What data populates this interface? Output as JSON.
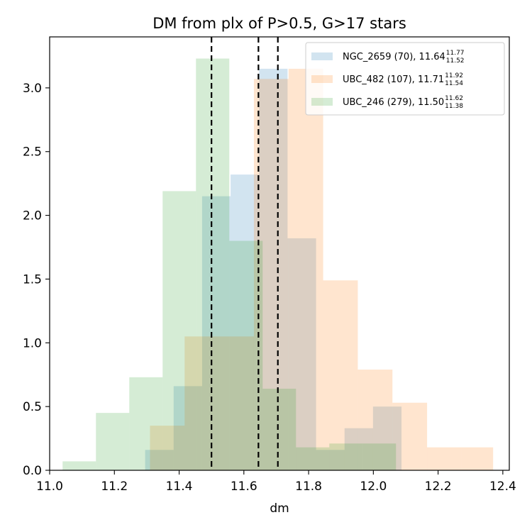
{
  "chart_data": {
    "type": "histogram",
    "title": "DM from plx of P>0.5, G>17 stars",
    "xlabel": "dm",
    "ylabel": "",
    "xlim": [
      11.0,
      12.42
    ],
    "ylim": [
      0,
      3.4
    ],
    "xticks": [
      "11.0",
      "11.2",
      "11.4",
      "11.6",
      "11.8",
      "12.0",
      "12.2",
      "12.4"
    ],
    "yticks": [
      "0.0",
      "0.5",
      "1.0",
      "1.5",
      "2.0",
      "2.5",
      "3.0"
    ],
    "legend_position": "upper-right",
    "series": [
      {
        "name": "NGC_2659 (70), 11.64",
        "sup": "11.77",
        "sub": "11.52",
        "color": "#1f77b4",
        "bin_edges": [
          11.295,
          11.383,
          11.471,
          11.559,
          11.647,
          11.735,
          11.823,
          11.911,
          11.999,
          12.087
        ],
        "values": [
          0.16,
          0.66,
          2.15,
          2.32,
          3.15,
          1.82,
          0.16,
          0.33,
          0.5
        ]
      },
      {
        "name": "UBC_482 (107), 11.71",
        "sup": "11.92",
        "sub": "11.54",
        "color": "#ff7f0e",
        "bin_edges": [
          11.31,
          11.417,
          11.524,
          11.631,
          11.738,
          11.845,
          11.952,
          12.059,
          12.166,
          12.273,
          12.37
        ],
        "values": [
          0.35,
          1.05,
          1.05,
          3.07,
          3.15,
          1.49,
          0.79,
          0.53,
          0.18,
          0.18
        ]
      },
      {
        "name": "UBC_246 (279), 11.50",
        "sup": "11.62",
        "sub": "11.38",
        "color": "#2ca02c",
        "bin_edges": [
          11.04,
          11.143,
          11.246,
          11.349,
          11.452,
          11.555,
          11.658,
          11.761,
          11.864,
          11.967,
          12.07
        ],
        "values": [
          0.07,
          0.45,
          0.73,
          2.19,
          3.23,
          1.8,
          0.64,
          0.18,
          0.21,
          0.21
        ]
      }
    ],
    "vlines": [
      11.5,
      11.645,
      11.705
    ]
  }
}
